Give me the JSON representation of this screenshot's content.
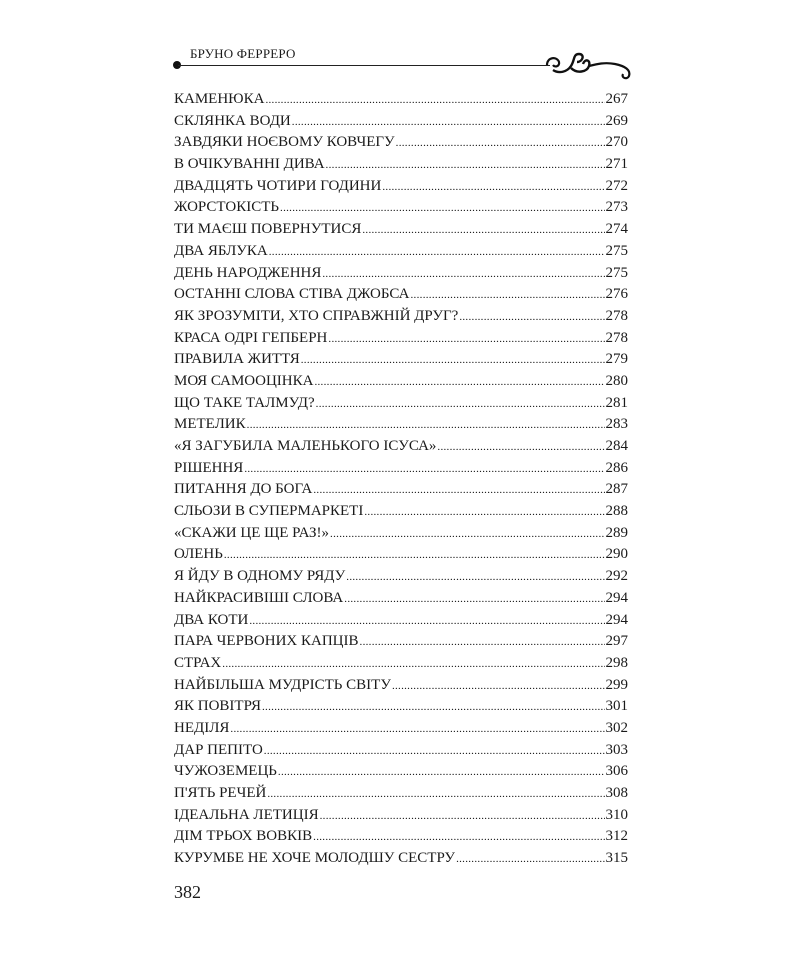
{
  "header": {
    "author": "БРУНО ФЕРРЕРО"
  },
  "toc": [
    {
      "title": "КАМЕНЮКА ",
      "page": "267"
    },
    {
      "title": "СКЛЯНКА ВОДИ",
      "page": "269"
    },
    {
      "title": "ЗАВДЯКИ НОЄВОМУ КОВЧЕГУ ",
      "page": "270"
    },
    {
      "title": "В ОЧІКУВАННІ ДИВА ",
      "page": "271"
    },
    {
      "title": "ДВАДЦЯТЬ ЧОТИРИ ГОДИНИ ",
      "page": "272"
    },
    {
      "title": "ЖОРСТОКІСТЬ",
      "page": "273"
    },
    {
      "title": "ТИ МАЄШ ПОВЕРНУТИСЯ",
      "page": "274"
    },
    {
      "title": "ДВА ЯБЛУКА ",
      "page": "275"
    },
    {
      "title": "ДЕНЬ НАРОДЖЕННЯ",
      "page": "275"
    },
    {
      "title": "ОСТАННІ СЛОВА СТІВА ДЖОБСА ",
      "page": "276"
    },
    {
      "title": "ЯК ЗРОЗУМІТИ, ХТО СПРАВЖНІЙ ДРУГ? ",
      "page": "278"
    },
    {
      "title": "КРАСА ОДРІ ГЕПБЕРН ",
      "page": "278"
    },
    {
      "title": "ПРАВИЛА ЖИТТЯ ",
      "page": "279"
    },
    {
      "title": "МОЯ САМООЦІНКА",
      "page": "280"
    },
    {
      "title": "ЩО ТАКЕ ТАЛМУД? ",
      "page": "281"
    },
    {
      "title": "МЕТЕЛИК ",
      "page": "283"
    },
    {
      "title": "«Я ЗАГУБИЛА МАЛЕНЬКОГО ІСУСА» ",
      "page": "284"
    },
    {
      "title": "РІШЕННЯ ",
      "page": "286"
    },
    {
      "title": "ПИТАННЯ ДО БОГА",
      "page": "287"
    },
    {
      "title": "СЛЬОЗИ В СУПЕРМАРКЕТІ",
      "page": "288"
    },
    {
      "title": "«СКАЖИ ЦЕ ЩЕ РАЗ!»",
      "page": "289"
    },
    {
      "title": "ОЛЕНЬ ",
      "page": "290"
    },
    {
      "title": "Я ЙДУ В ОДНОМУ РЯДУ ",
      "page": "292"
    },
    {
      "title": "НАЙКРАСИВІШІ СЛОВА ",
      "page": "294"
    },
    {
      "title": "ДВА КОТИ ",
      "page": "294"
    },
    {
      "title": "ПАРА ЧЕРВОНИХ КАПЦІВ",
      "page": "297"
    },
    {
      "title": "СТРАХ",
      "page": "298"
    },
    {
      "title": "НАЙБІЛЬША МУДРІСТЬ СВІТУ ",
      "page": "299"
    },
    {
      "title": "ЯК ПОВІТРЯ",
      "page": "301"
    },
    {
      "title": "НЕДІЛЯ",
      "page": "302"
    },
    {
      "title": "ДАР ПЕПІТО",
      "page": "303"
    },
    {
      "title": "ЧУЖОЗЕМЕЦЬ",
      "page": "306"
    },
    {
      "title": "П'ЯТЬ РЕЧЕЙ ",
      "page": "308"
    },
    {
      "title": "ІДЕАЛЬНА ЛЕТИЦІЯ ",
      "page": "310"
    },
    {
      "title": "ДІМ ТРЬОХ ВОВКІВ ",
      "page": "312"
    },
    {
      "title": "КУРУМБЕ НЕ ХОЧЕ МОЛОДШУ СЕСТРУ",
      "page": "315"
    }
  ],
  "footer": {
    "page_number": "382"
  }
}
